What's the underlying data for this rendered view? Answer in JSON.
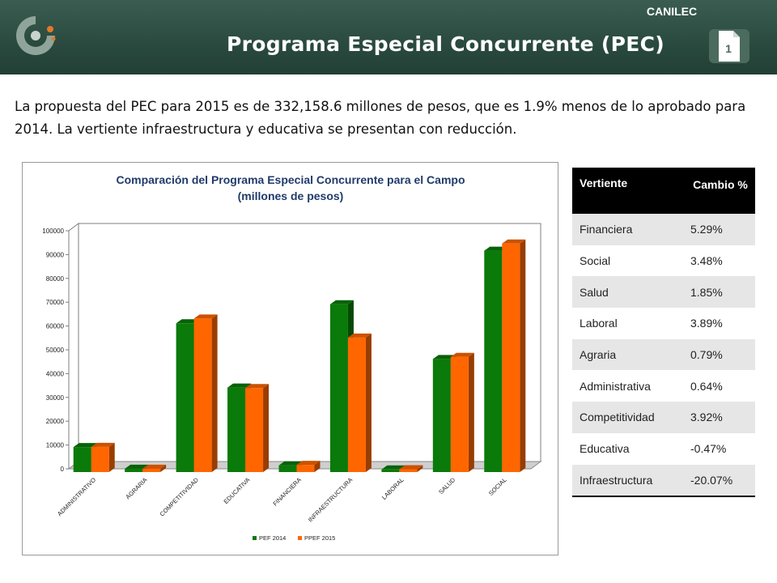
{
  "header": {
    "org": "CANILEC",
    "title": "Programa Especial Concurrente (PEC)",
    "slide_number": "1",
    "colors": {
      "bar": "#2d4c41",
      "accent": "#e07a28"
    }
  },
  "intro": "La propuesta del PEC para 2015 es de 332,158.6 millones de pesos, que es 1.9% menos de lo aprobado para 2014.  La vertiente infraestructura y educativa se presentan con reducción.",
  "table": {
    "headers": [
      "Vertiente",
      "Cambio %"
    ],
    "rows": [
      {
        "vertiente": "Financiera",
        "cambio": "5.29%"
      },
      {
        "vertiente": "Social",
        "cambio": "3.48%"
      },
      {
        "vertiente": "Salud",
        "cambio": "1.85%"
      },
      {
        "vertiente": "Laboral",
        "cambio": "3.89%"
      },
      {
        "vertiente": "Agraria",
        "cambio": "0.79%"
      },
      {
        "vertiente": "Administrativa",
        "cambio": "0.64%"
      },
      {
        "vertiente": "Competitividad",
        "cambio": "3.92%"
      },
      {
        "vertiente": "Educativa",
        "cambio": "-0.47%"
      },
      {
        "vertiente": "Infraestructura",
        "cambio": "-20.07%"
      }
    ]
  },
  "chart_data": {
    "type": "bar",
    "title": "Comparación del Programa Especial Concurrente para el Campo",
    "subtitle": "(millones de pesos)",
    "categories": [
      "ADMINISTRATIVO",
      "AGRARIA",
      "COMPETITIVIDAD",
      "EDUCATIVA",
      "FINANCIERA",
      "INFRAESTRUCTURA",
      "LABORAL",
      "SALUD",
      "SOCIAL"
    ],
    "series": [
      {
        "name": "PEF 2014",
        "color": "#0a7a0a",
        "values": [
          10500,
          1400,
          62500,
          35500,
          2800,
          70500,
          1100,
          47500,
          93000
        ]
      },
      {
        "name": "PPEF 2015",
        "color": "#ff6600",
        "values": [
          10600,
          1400,
          64500,
          35300,
          3000,
          56500,
          1200,
          48400,
          96000
        ]
      }
    ],
    "yticks": [
      "0",
      "10000",
      "20000",
      "30000",
      "40000",
      "50000",
      "60000",
      "70000",
      "80000",
      "90000",
      "100000"
    ],
    "ylim": [
      0,
      100000
    ],
    "legend_position": "bottom",
    "grid": false
  }
}
